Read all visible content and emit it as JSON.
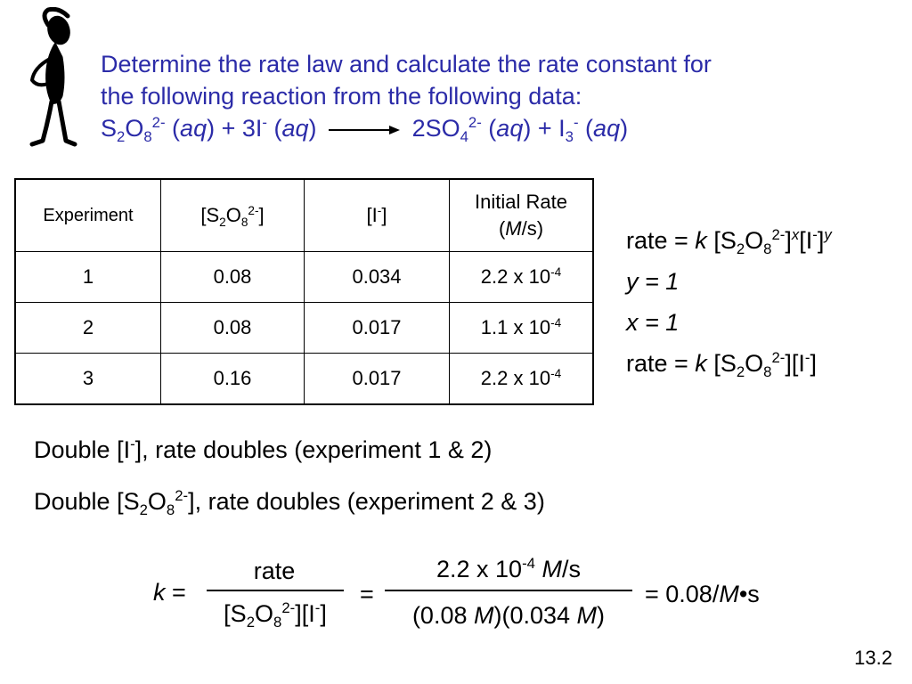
{
  "title": {
    "line1": "Determine the rate law and calculate the rate constant for",
    "line2": "the following reaction from the following data:",
    "reaction": {
      "reactant1": {
        "el1": "S",
        "sub1": "2",
        "el2": "O",
        "sub2": "8",
        "charge": "2-"
      },
      "state1": "aq",
      "plus1": "+",
      "reactant2": {
        "coef": "3I",
        "charge": "-"
      },
      "state2": "aq",
      "product1": {
        "text": "2SO",
        "sub": "4",
        "charge": "2-"
      },
      "state3": "aq",
      "plus2": "+",
      "product2": {
        "el": "I",
        "sub": "3",
        "charge": "-"
      },
      "state4": "aq"
    }
  },
  "table": {
    "headers": {
      "experiment": "Experiment",
      "s2o8": {
        "a": "[S",
        "s1": "2",
        "b": "O",
        "s2": "8",
        "sup": "2-",
        "c": "]"
      },
      "iodide": {
        "a": "[I",
        "sup": "-",
        "b": "]"
      },
      "rate_line1": "Initial Rate",
      "rate_unit": "M",
      "rate_line2_rest": "/s)"
    },
    "rows": [
      {
        "exp": "1",
        "s2o8": "0.08",
        "i": "0.034",
        "rate": "2.2 x 10",
        "exp10": "-4"
      },
      {
        "exp": "2",
        "s2o8": "0.08",
        "i": "0.017",
        "rate": "1.1 x 10",
        "exp10": "-4"
      },
      {
        "exp": "3",
        "s2o8": "0.16",
        "i": "0.017",
        "rate": "2.2 x 10",
        "exp10": "-4"
      }
    ]
  },
  "rate_law": {
    "general_prefix": "rate = ",
    "k": "k",
    "y_line": "y = 1",
    "x_line": "x = 1",
    "exp_x": "x",
    "exp_y": "y"
  },
  "observations": {
    "obs1_prefix": "Double [I",
    "obs1_suffix": "], rate doubles (experiment 1 & 2)",
    "obs2_prefix": "Double [S",
    "obs2_suffix": "], rate doubles (experiment 2 & 3)"
  },
  "calculation": {
    "k_label": "k",
    "equals": "=",
    "numerator1": "rate",
    "numerator2_value": "2.2 x 10",
    "numerator2_exp": "-4",
    "numerator2_unit": "M",
    "numerator2_rest": "/s",
    "denominator2_a": "(0.08 ",
    "denominator2_b": ")(0.034 ",
    "unit_M": "M",
    "result": "= 0.08/",
    "result_unit": "M",
    "result_rest": "•s"
  },
  "page_number": "13.2"
}
